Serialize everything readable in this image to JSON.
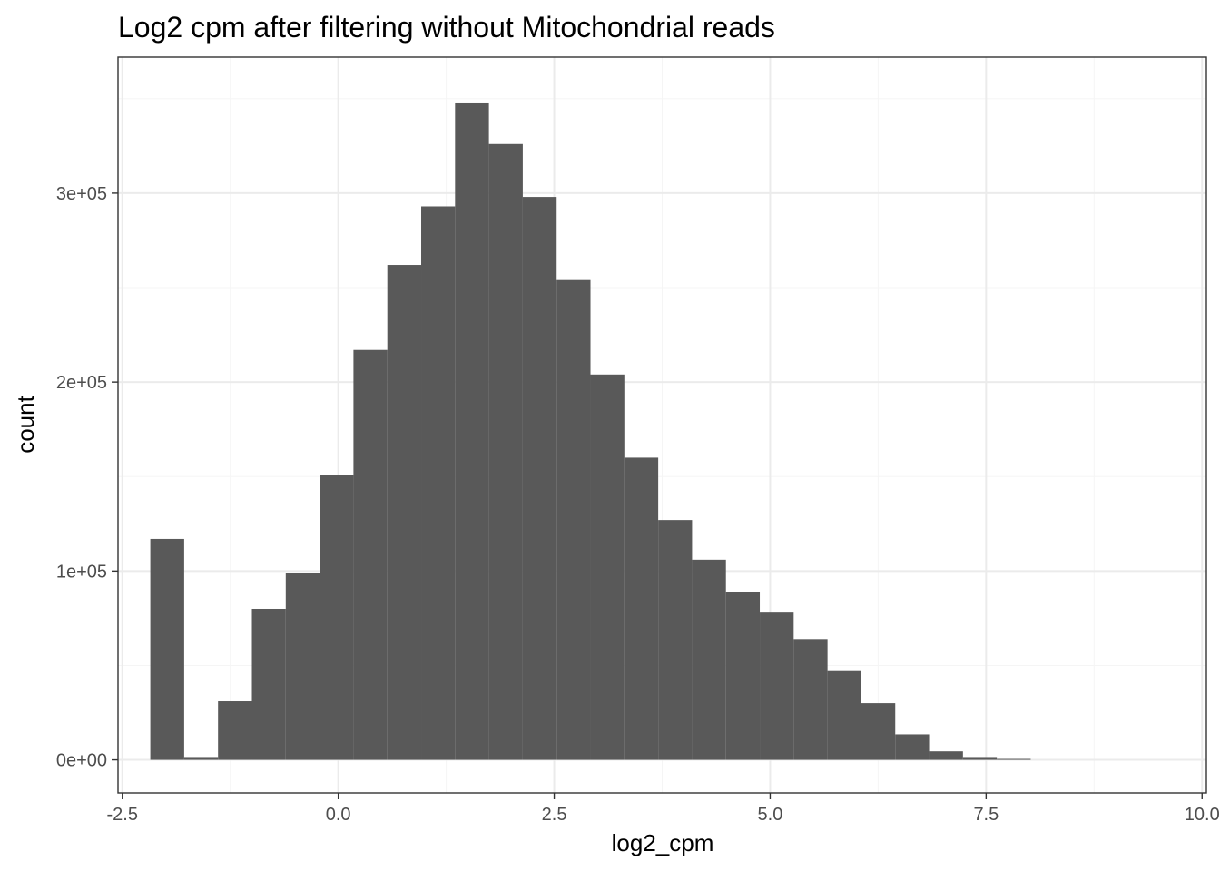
{
  "chart_data": {
    "type": "bar",
    "title": "Log2 cpm after filtering without Mitochondrial reads",
    "xlabel": "log2_cpm",
    "ylabel": "count",
    "xlim": [
      -2.55,
      10.05
    ],
    "ylim": [
      -17500,
      372000
    ],
    "grid": true,
    "bin_width": 0.392,
    "bins": [
      {
        "x": -1.98,
        "count": 117000
      },
      {
        "x": -1.588,
        "count": 1500
      },
      {
        "x": -1.196,
        "count": 31000
      },
      {
        "x": -0.804,
        "count": 80000
      },
      {
        "x": -0.412,
        "count": 99000
      },
      {
        "x": -0.02,
        "count": 151000
      },
      {
        "x": 0.372,
        "count": 217000
      },
      {
        "x": 0.764,
        "count": 262000
      },
      {
        "x": 1.156,
        "count": 293000
      },
      {
        "x": 1.548,
        "count": 348000
      },
      {
        "x": 1.94,
        "count": 326000
      },
      {
        "x": 2.332,
        "count": 298000
      },
      {
        "x": 2.724,
        "count": 254000
      },
      {
        "x": 3.116,
        "count": 204000
      },
      {
        "x": 3.508,
        "count": 160000
      },
      {
        "x": 3.9,
        "count": 127000
      },
      {
        "x": 4.292,
        "count": 106000
      },
      {
        "x": 4.684,
        "count": 89000
      },
      {
        "x": 5.076,
        "count": 78000
      },
      {
        "x": 5.468,
        "count": 64000
      },
      {
        "x": 5.86,
        "count": 47000
      },
      {
        "x": 6.252,
        "count": 30000
      },
      {
        "x": 6.644,
        "count": 13500
      },
      {
        "x": 7.036,
        "count": 4500
      },
      {
        "x": 7.428,
        "count": 1500
      },
      {
        "x": 7.82,
        "count": 500
      }
    ],
    "x_ticks": [
      {
        "value": -2.5,
        "label": "-2.5"
      },
      {
        "value": 0.0,
        "label": "0.0"
      },
      {
        "value": 2.5,
        "label": "2.5"
      },
      {
        "value": 5.0,
        "label": "5.0"
      },
      {
        "value": 7.5,
        "label": "7.5"
      },
      {
        "value": 10.0,
        "label": "10.0"
      }
    ],
    "x_minor_ticks": [
      -1.25,
      1.25,
      3.75,
      6.25,
      8.75
    ],
    "y_ticks": [
      {
        "value": 0,
        "label": "0e+00"
      },
      {
        "value": 100000,
        "label": "1e+05"
      },
      {
        "value": 200000,
        "label": "2e+05"
      },
      {
        "value": 300000,
        "label": "3e+05"
      }
    ],
    "y_minor_ticks": [
      50000,
      150000,
      250000,
      350000
    ],
    "colors": {
      "bar": "#595959",
      "panel_border": "#333333",
      "grid_major": "#ebebeb",
      "grid_minor": "#f5f5f5",
      "tick_label": "#4d4d4d"
    }
  }
}
